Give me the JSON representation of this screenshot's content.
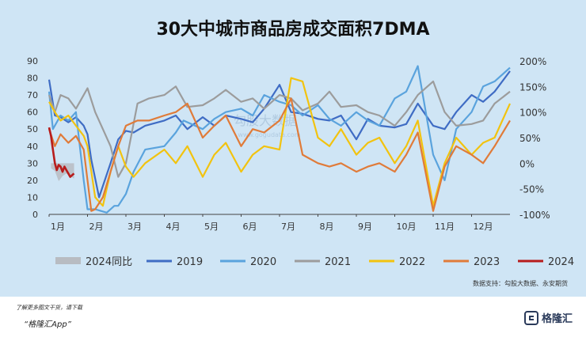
{
  "chart_data": {
    "type": "line",
    "title": "30大中城市商品房成交面积7DMA",
    "x_tick_labels": [
      "1月",
      "2月",
      "3月",
      "4月",
      "5月",
      "6月",
      "7月",
      "8月",
      "9月",
      "10月",
      "11月",
      "12月"
    ],
    "left_axis": {
      "ticks": [
        "0",
        "10",
        "20",
        "30",
        "40",
        "50",
        "60",
        "70",
        "80",
        "90"
      ],
      "ylim": [
        0,
        90
      ]
    },
    "right_axis": {
      "ticks": [
        "-100%",
        "-50%",
        "0%",
        "50%",
        "100%",
        "150%",
        "200%"
      ],
      "ylim": [
        -100,
        200
      ]
    },
    "grid": false,
    "legend_position": "bottom",
    "series": [
      {
        "name": "2024同比",
        "type": "area",
        "axis": "right",
        "color": "#b8bcc2",
        "x": [
          0.05,
          0.15,
          0.25,
          0.35,
          0.45,
          0.55,
          0.65
        ],
        "values": [
          -10,
          -15,
          -35,
          -25,
          -20,
          -25,
          -30
        ]
      },
      {
        "name": "2019",
        "type": "line",
        "axis": "left",
        "color": "#3f6cc4",
        "x": [
          0,
          0.15,
          0.3,
          0.5,
          0.7,
          0.9,
          1.0,
          1.1,
          1.3,
          1.6,
          1.8,
          2.0,
          2.2,
          2.5,
          3.0,
          3.3,
          3.6,
          4.0,
          4.3,
          4.6,
          5.0,
          5.3,
          5.6,
          6.0,
          6.3,
          6.6,
          7.0,
          7.3,
          7.6,
          8.0,
          8.3,
          8.6,
          9.0,
          9.3,
          9.6,
          10.0,
          10.3,
          10.6,
          11.0,
          11.3,
          11.6,
          12.0
        ],
        "values": [
          79,
          58,
          57,
          54,
          57,
          52,
          47,
          32,
          10,
          30,
          44,
          49,
          48,
          52,
          55,
          58,
          50,
          57,
          52,
          58,
          56,
          54,
          62,
          76,
          60,
          59,
          56,
          55,
          58,
          44,
          56,
          52,
          51,
          53,
          65,
          52,
          50,
          60,
          70,
          66,
          72,
          84
        ]
      },
      {
        "name": "2020",
        "type": "line",
        "axis": "left",
        "color": "#5aa3dd",
        "x": [
          0,
          0.1,
          0.3,
          0.5,
          0.7,
          0.8,
          0.9,
          1.0,
          1.2,
          1.5,
          1.7,
          1.8,
          2.0,
          2.2,
          2.5,
          3.0,
          3.3,
          3.5,
          4.0,
          4.3,
          4.6,
          5.0,
          5.3,
          5.6,
          6.0,
          6.3,
          6.6,
          7.0,
          7.3,
          7.6,
          8.0,
          8.3,
          8.6,
          9.0,
          9.3,
          9.6,
          10.0,
          10.3,
          10.6,
          11.0,
          11.3,
          11.6,
          12.0
        ],
        "values": [
          72,
          50,
          58,
          55,
          60,
          40,
          20,
          3,
          3,
          1,
          5,
          5,
          12,
          25,
          38,
          40,
          48,
          55,
          50,
          56,
          60,
          62,
          58,
          70,
          66,
          64,
          58,
          64,
          56,
          52,
          60,
          55,
          52,
          68,
          72,
          87,
          35,
          20,
          50,
          60,
          75,
          78,
          86
        ]
      },
      {
        "name": "2021",
        "type": "line",
        "axis": "left",
        "color": "#9c9c9c",
        "x": [
          0,
          0.15,
          0.3,
          0.5,
          0.7,
          0.9,
          1.0,
          1.2,
          1.4,
          1.6,
          1.8,
          2.0,
          2.3,
          2.6,
          3.0,
          3.3,
          3.6,
          4.0,
          4.3,
          4.6,
          5.0,
          5.3,
          5.6,
          6.0,
          6.3,
          6.6,
          7.0,
          7.3,
          7.6,
          8.0,
          8.3,
          8.6,
          9.0,
          9.3,
          9.6,
          10.0,
          10.3,
          10.6,
          11.0,
          11.3,
          11.6,
          12.0
        ],
        "values": [
          70,
          60,
          70,
          68,
          62,
          70,
          74,
          60,
          50,
          40,
          22,
          30,
          65,
          68,
          70,
          75,
          63,
          64,
          68,
          73,
          66,
          68,
          62,
          70,
          68,
          61,
          65,
          72,
          63,
          64,
          60,
          58,
          52,
          60,
          70,
          78,
          60,
          52,
          53,
          55,
          65,
          72
        ]
      },
      {
        "name": "2022",
        "type": "line",
        "axis": "left",
        "color": "#f2c30f",
        "x": [
          0,
          0.15,
          0.3,
          0.5,
          0.7,
          0.9,
          1.0,
          1.2,
          1.4,
          1.6,
          1.8,
          2.0,
          2.2,
          2.5,
          3.0,
          3.3,
          3.6,
          4.0,
          4.3,
          4.6,
          5.0,
          5.3,
          5.6,
          6.0,
          6.3,
          6.6,
          7.0,
          7.3,
          7.6,
          8.0,
          8.3,
          8.6,
          9.0,
          9.3,
          9.6,
          10.0,
          10.3,
          10.6,
          11.0,
          11.3,
          11.6,
          12.0
        ],
        "values": [
          66,
          60,
          55,
          58,
          52,
          46,
          40,
          10,
          5,
          25,
          40,
          28,
          22,
          30,
          38,
          30,
          40,
          22,
          35,
          42,
          25,
          35,
          40,
          38,
          80,
          78,
          45,
          40,
          50,
          35,
          42,
          45,
          30,
          40,
          55,
          5,
          30,
          45,
          35,
          42,
          45,
          65
        ]
      },
      {
        "name": "2023",
        "type": "line",
        "axis": "left",
        "color": "#e07b39",
        "x": [
          0,
          0.15,
          0.3,
          0.5,
          0.7,
          0.9,
          1.0,
          1.1,
          1.2,
          1.4,
          1.6,
          1.8,
          2.0,
          2.3,
          2.6,
          3.0,
          3.3,
          3.6,
          4.0,
          4.3,
          4.6,
          5.0,
          5.3,
          5.6,
          6.0,
          6.3,
          6.6,
          7.0,
          7.3,
          7.6,
          8.0,
          8.3,
          8.6,
          9.0,
          9.3,
          9.6,
          10.0,
          10.3,
          10.6,
          11.0,
          11.3,
          11.6,
          12.0
        ],
        "values": [
          50,
          40,
          47,
          42,
          46,
          38,
          20,
          2,
          3,
          10,
          25,
          40,
          52,
          55,
          55,
          58,
          60,
          65,
          45,
          52,
          58,
          40,
          50,
          48,
          55,
          68,
          35,
          30,
          28,
          30,
          25,
          28,
          30,
          25,
          35,
          48,
          2,
          28,
          40,
          35,
          30,
          40,
          55
        ]
      },
      {
        "name": "2024",
        "type": "line",
        "axis": "left",
        "color": "#b71c1c",
        "x": [
          0,
          0.05,
          0.1,
          0.15,
          0.2,
          0.25,
          0.3,
          0.35,
          0.4,
          0.45,
          0.5,
          0.55,
          0.6,
          0.65
        ],
        "values": [
          51,
          46,
          38,
          30,
          26,
          29,
          28,
          25,
          28,
          26,
          24,
          22,
          23,
          24
        ]
      }
    ],
    "source_note": "数据支持：勾股大数据、永安期货"
  },
  "watermark": "勾股大数据",
  "watermark_url": "www.gogudata.com",
  "footer": {
    "note": "了解更多图文干货，请下载",
    "app_name": "“格隆汇App”",
    "brand": "格隆汇"
  }
}
